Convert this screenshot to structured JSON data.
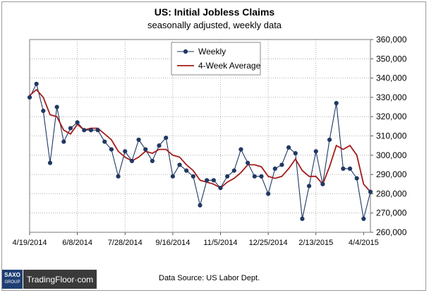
{
  "title": "US: Initial Jobless Claims",
  "subtitle": "seasonally  adjusted,  weekly data",
  "source": "Data Source: US Labor Dept.",
  "branding": {
    "logo_top": "SAXO",
    "logo_bottom": "GROUP",
    "site": "TradingFloor·com"
  },
  "chart_data": {
    "type": "line",
    "ylim": [
      260000,
      360000
    ],
    "yticks": [
      260000,
      270000,
      280000,
      290000,
      300000,
      310000,
      320000,
      330000,
      340000,
      350000,
      360000
    ],
    "ytick_labels": [
      "260,000",
      "270,000",
      "280,000",
      "290,000",
      "300,000",
      "310,000",
      "320,000",
      "330,000",
      "340,000",
      "350,000",
      "360,000"
    ],
    "xtick_labels": [
      "4/19/2014",
      "6/8/2014",
      "7/28/2014",
      "9/16/2014",
      "11/5/2014",
      "12/25/2014",
      "2/13/2015",
      "4/4/2015"
    ],
    "grid": true,
    "legend_position": "top-center",
    "series": [
      {
        "name": "Weekly",
        "color": "#1f3864",
        "marker": "circle",
        "values": [
          330000,
          337000,
          323000,
          296000,
          325000,
          307000,
          314000,
          317000,
          313000,
          313000,
          313000,
          307000,
          303000,
          289000,
          302000,
          297000,
          308000,
          303000,
          297000,
          305000,
          309000,
          289000,
          295000,
          292000,
          289000,
          274000,
          287000,
          287000,
          283000,
          289000,
          292000,
          303000,
          296000,
          289000,
          289000,
          280000,
          293000,
          295000,
          304000,
          301000,
          267000,
          284000,
          302000,
          285000,
          308000,
          327000,
          293000,
          293000,
          288000,
          267000,
          281000
        ]
      },
      {
        "name": "4-Week Average",
        "color": "#a51c1c",
        "marker": "none",
        "values": [
          331000,
          334000,
          330000,
          321000,
          320000,
          313000,
          311000,
          316000,
          313000,
          314000,
          314000,
          311000,
          308000,
          302000,
          299000,
          297000,
          299000,
          302000,
          301000,
          303000,
          303000,
          300000,
          299000,
          295000,
          292000,
          287000,
          286000,
          285000,
          283000,
          286000,
          288000,
          291000,
          295000,
          295000,
          294000,
          289000,
          288000,
          289000,
          293000,
          298000,
          292000,
          289000,
          289000,
          285000,
          294000,
          305000,
          303000,
          305000,
          300000,
          285000,
          281000
        ]
      }
    ]
  }
}
